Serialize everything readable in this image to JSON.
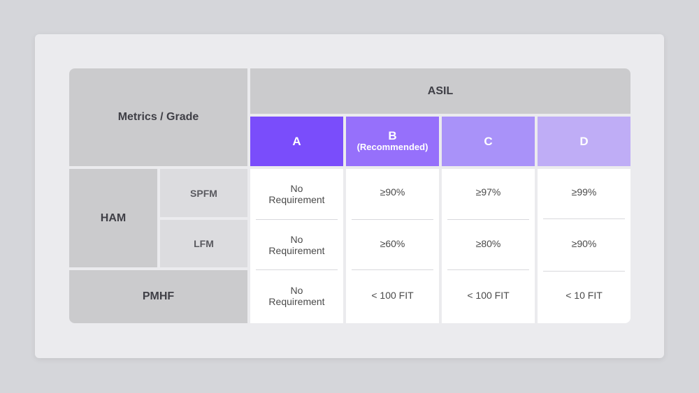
{
  "header": {
    "metrics_grade": "Metrics / Grade",
    "asil": "ASIL"
  },
  "grades": [
    {
      "letter": "A",
      "note": "",
      "color": "#7a4dfb"
    },
    {
      "letter": "B",
      "note": "(Recommended)",
      "color": "#9670fb"
    },
    {
      "letter": "C",
      "note": "",
      "color": "#a992f9"
    },
    {
      "letter": "D",
      "note": "",
      "color": "#bfadf6"
    }
  ],
  "rows": {
    "ham": "HAM",
    "spfm": "SPFM",
    "lfm": "LFM",
    "pmhf": "PMHF"
  },
  "values": {
    "spfm": [
      [
        "No",
        "Requirement"
      ],
      [
        "≥90%"
      ],
      [
        "≥97%"
      ],
      [
        "≥99%"
      ]
    ],
    "lfm": [
      [
        "No",
        "Requirement"
      ],
      [
        "≥60%"
      ],
      [
        "≥80%"
      ],
      [
        "≥90%"
      ]
    ],
    "pmhf": [
      [
        "No",
        "Requirement"
      ],
      [
        "< 100 FIT"
      ],
      [
        "< 100 FIT"
      ],
      [
        "< 10 FIT"
      ]
    ]
  },
  "colors": {
    "background": "#d5d6da",
    "card": "#ebebee",
    "header_gray": "#cbcbcd",
    "sub_gray": "#dcdcdf"
  }
}
